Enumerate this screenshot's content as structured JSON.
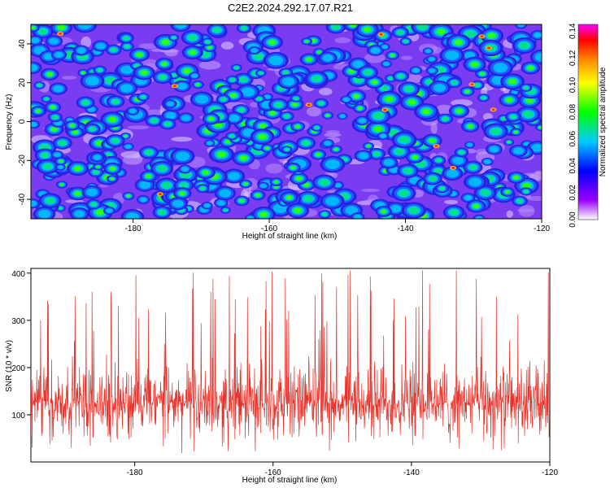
{
  "title": "C2E2.2024.292.17.07.R21",
  "chart_data": [
    {
      "type": "heatmap",
      "xlabel": "Height of straight line (km)",
      "ylabel": "Frequency (Hz)",
      "xlim": [
        -195,
        -120
      ],
      "ylim": [
        -50,
        50
      ],
      "xticks": [
        -180,
        -160,
        -140,
        -120
      ],
      "yticks": [
        40,
        20,
        0,
        -20,
        -40
      ],
      "colorbar": {
        "label": "Normalized spectral amplitude",
        "range": [
          0,
          0.145
        ],
        "ticks": [
          "0.00",
          "0.02",
          "0.04",
          "0.06",
          "0.08",
          "0.10",
          "0.12",
          "0.14"
        ],
        "colormap": "rainbow: white-violet-blue-cyan-green-yellow-orange-red-magenta"
      },
      "grid": false
    },
    {
      "type": "line",
      "xlabel": "Height of straight line (km)",
      "ylabel": "SNR (10 * v/v)",
      "xlim": [
        -195,
        -120
      ],
      "ylim": [
        0,
        410
      ],
      "xticks": [
        -180,
        -160,
        -140,
        -120
      ],
      "yticks": [
        100,
        200,
        300,
        400
      ],
      "series": [
        {
          "color": "#e8322a",
          "baseline": 125,
          "typical_range": [
            40,
            240
          ],
          "peak_max": 410
        }
      ],
      "grid": false
    }
  ]
}
